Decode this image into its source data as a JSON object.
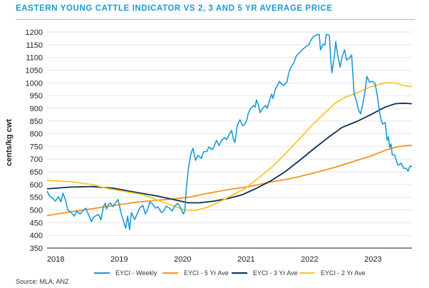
{
  "title": "EASTERN YOUNG CATTLE INDICATOR VS 2, 3 AND 5 YR AVERAGE PRICE",
  "source": "Source: MLA, ANZ",
  "chart_data": {
    "type": "line",
    "title": "EASTERN YOUNG CATTLE INDICATOR VS 2, 3 AND 5 YR AVERAGE PRICE",
    "xlabel": "",
    "ylabel": "cents/kg cwt",
    "xlim": [
      2018.0,
      2023.75
    ],
    "ylim": [
      350,
      1200
    ],
    "x_ticks": [
      "2018",
      "2019",
      "2020",
      "2021",
      "2022",
      "2023"
    ],
    "x_tick_values": [
      2018,
      2019,
      2020,
      2021,
      2022,
      2023
    ],
    "y_ticks": [
      350,
      400,
      450,
      500,
      550,
      600,
      650,
      700,
      750,
      800,
      850,
      900,
      950,
      1000,
      1050,
      1100,
      1150,
      1200
    ],
    "grid": true,
    "legend_position": "bottom",
    "series": [
      {
        "name": "EYCI - Weekly",
        "color": "#1a9ad6",
        "points": [
          [
            2018.0,
            574
          ],
          [
            2018.04,
            555
          ],
          [
            2018.09,
            546
          ],
          [
            2018.13,
            535
          ],
          [
            2018.18,
            552
          ],
          [
            2018.22,
            532
          ],
          [
            2018.25,
            566
          ],
          [
            2018.29,
            541
          ],
          [
            2018.33,
            499
          ],
          [
            2018.38,
            490
          ],
          [
            2018.43,
            476
          ],
          [
            2018.47,
            496
          ],
          [
            2018.52,
            484
          ],
          [
            2018.56,
            496
          ],
          [
            2018.61,
            507
          ],
          [
            2018.65,
            484
          ],
          [
            2018.7,
            454
          ],
          [
            2018.73,
            470
          ],
          [
            2018.76,
            476
          ],
          [
            2018.81,
            482
          ],
          [
            2018.85,
            462
          ],
          [
            2018.89,
            513
          ],
          [
            2018.92,
            527
          ],
          [
            2018.94,
            504
          ],
          [
            2018.97,
            522
          ],
          [
            2019.0,
            527
          ],
          [
            2019.04,
            513
          ],
          [
            2019.06,
            522
          ],
          [
            2019.12,
            541
          ],
          [
            2019.17,
            484
          ],
          [
            2019.24,
            428
          ],
          [
            2019.27,
            476
          ],
          [
            2019.3,
            423
          ],
          [
            2019.33,
            490
          ],
          [
            2019.38,
            462
          ],
          [
            2019.42,
            484
          ],
          [
            2019.46,
            507
          ],
          [
            2019.51,
            518
          ],
          [
            2019.55,
            484
          ],
          [
            2019.58,
            499
          ],
          [
            2019.62,
            532
          ],
          [
            2019.66,
            524
          ],
          [
            2019.71,
            507
          ],
          [
            2019.75,
            513
          ],
          [
            2019.8,
            490
          ],
          [
            2019.84,
            496
          ],
          [
            2019.88,
            515
          ],
          [
            2019.93,
            507
          ],
          [
            2019.97,
            496
          ],
          [
            2020.01,
            513
          ],
          [
            2020.06,
            527
          ],
          [
            2020.1,
            510
          ],
          [
            2020.15,
            484
          ],
          [
            2020.17,
            496
          ],
          [
            2020.2,
            597
          ],
          [
            2020.23,
            667
          ],
          [
            2020.27,
            723
          ],
          [
            2020.3,
            743
          ],
          [
            2020.34,
            695
          ],
          [
            2020.38,
            715
          ],
          [
            2020.43,
            703
          ],
          [
            2020.47,
            729
          ],
          [
            2020.52,
            731
          ],
          [
            2020.55,
            748
          ],
          [
            2020.6,
            737
          ],
          [
            2020.63,
            748
          ],
          [
            2020.67,
            774
          ],
          [
            2020.71,
            754
          ],
          [
            2020.75,
            774
          ],
          [
            2020.8,
            785
          ],
          [
            2020.83,
            776
          ],
          [
            2020.88,
            802
          ],
          [
            2020.91,
            813
          ],
          [
            2020.93,
            785
          ],
          [
            2020.96,
            765
          ],
          [
            2021.0,
            835
          ],
          [
            2021.04,
            855
          ],
          [
            2021.08,
            832
          ],
          [
            2021.11,
            835
          ],
          [
            2021.15,
            855
          ],
          [
            2021.17,
            880
          ],
          [
            2021.21,
            900
          ],
          [
            2021.26,
            911
          ],
          [
            2021.28,
            905
          ],
          [
            2021.3,
            933
          ],
          [
            2021.33,
            914
          ],
          [
            2021.36,
            883
          ],
          [
            2021.39,
            897
          ],
          [
            2021.44,
            911
          ],
          [
            2021.47,
            900
          ],
          [
            2021.51,
            933
          ],
          [
            2021.54,
            956
          ],
          [
            2021.56,
            939
          ],
          [
            2021.6,
            976
          ],
          [
            2021.63,
            990
          ],
          [
            2021.66,
            1006
          ],
          [
            2021.7,
            995
          ],
          [
            2021.73,
            990
          ],
          [
            2021.78,
            1004
          ],
          [
            2021.81,
            1040
          ],
          [
            2021.84,
            1060
          ],
          [
            2021.89,
            1079
          ],
          [
            2021.93,
            1107
          ],
          [
            2021.98,
            1119
          ],
          [
            2022.02,
            1130
          ],
          [
            2022.07,
            1141
          ],
          [
            2022.09,
            1144
          ],
          [
            2022.13,
            1152
          ],
          [
            2022.16,
            1169
          ],
          [
            2022.2,
            1183
          ],
          [
            2022.24,
            1187
          ],
          [
            2022.26,
            1190
          ],
          [
            2022.29,
            1190
          ],
          [
            2022.31,
            1130
          ],
          [
            2022.35,
            1152
          ],
          [
            2022.38,
            1150
          ],
          [
            2022.4,
            1190
          ],
          [
            2022.43,
            1190
          ],
          [
            2022.45,
            1185
          ],
          [
            2022.47,
            1096
          ],
          [
            2022.49,
            1040
          ],
          [
            2022.53,
            1110
          ],
          [
            2022.55,
            1163
          ],
          [
            2022.58,
            1110
          ],
          [
            2022.62,
            1062
          ],
          [
            2022.65,
            1104
          ],
          [
            2022.69,
            1130
          ],
          [
            2022.72,
            1090
          ],
          [
            2022.76,
            1096
          ],
          [
            2022.8,
            1110
          ],
          [
            2022.84,
            956
          ],
          [
            2022.88,
            928
          ],
          [
            2022.9,
            900
          ],
          [
            2022.94,
            878
          ],
          [
            2022.97,
            908
          ],
          [
            2023.01,
            964
          ],
          [
            2023.04,
            1026
          ],
          [
            2023.08,
            1004
          ],
          [
            2023.13,
            1006
          ],
          [
            2023.17,
            997
          ],
          [
            2023.21,
            942
          ],
          [
            2023.24,
            886
          ],
          [
            2023.26,
            858
          ],
          [
            2023.29,
            838
          ],
          [
            2023.33,
            844
          ],
          [
            2023.36,
            774
          ],
          [
            2023.38,
            788
          ],
          [
            2023.4,
            746
          ],
          [
            2023.42,
            760
          ],
          [
            2023.44,
            718
          ],
          [
            2023.48,
            715
          ],
          [
            2023.51,
            690
          ],
          [
            2023.53,
            676
          ],
          [
            2023.58,
            684
          ],
          [
            2023.62,
            664
          ],
          [
            2023.66,
            664
          ],
          [
            2023.69,
            653
          ],
          [
            2023.72,
            673
          ],
          [
            2023.75,
            670
          ]
        ]
      },
      {
        "name": "EYCI - 5 Yr Ave",
        "color": "#f7941d",
        "points": [
          [
            2018.0,
            478
          ],
          [
            2018.38,
            493
          ],
          [
            2018.72,
            505
          ],
          [
            2019.06,
            518
          ],
          [
            2019.39,
            530
          ],
          [
            2019.73,
            538
          ],
          [
            2020.06,
            545
          ],
          [
            2020.23,
            550
          ],
          [
            2020.52,
            565
          ],
          [
            2020.85,
            580
          ],
          [
            2021.19,
            592
          ],
          [
            2021.53,
            610
          ],
          [
            2021.87,
            625
          ],
          [
            2022.2,
            645
          ],
          [
            2022.54,
            668
          ],
          [
            2022.88,
            695
          ],
          [
            2023.1,
            712
          ],
          [
            2023.33,
            735
          ],
          [
            2023.55,
            750
          ],
          [
            2023.75,
            755
          ]
        ]
      },
      {
        "name": "EYCI - 3 Yr Ave",
        "color": "#0b2f52",
        "points": [
          [
            2018.0,
            583
          ],
          [
            2018.38,
            590
          ],
          [
            2018.72,
            592
          ],
          [
            2019.06,
            585
          ],
          [
            2019.39,
            570
          ],
          [
            2019.73,
            555
          ],
          [
            2020.06,
            537
          ],
          [
            2020.23,
            528
          ],
          [
            2020.4,
            528
          ],
          [
            2020.63,
            535
          ],
          [
            2020.85,
            545
          ],
          [
            2021.08,
            560
          ],
          [
            2021.3,
            585
          ],
          [
            2021.53,
            615
          ],
          [
            2021.75,
            650
          ],
          [
            2021.98,
            695
          ],
          [
            2022.2,
            740
          ],
          [
            2022.43,
            785
          ],
          [
            2022.65,
            825
          ],
          [
            2022.88,
            848
          ],
          [
            2023.1,
            875
          ],
          [
            2023.33,
            905
          ],
          [
            2023.49,
            918
          ],
          [
            2023.61,
            920
          ],
          [
            2023.75,
            918
          ]
        ]
      },
      {
        "name": "EYCI - 2 Yr Ave",
        "color": "#fcc52d",
        "points": [
          [
            2018.0,
            617
          ],
          [
            2018.38,
            611
          ],
          [
            2018.72,
            600
          ],
          [
            2018.94,
            585
          ],
          [
            2019.17,
            575
          ],
          [
            2019.51,
            560
          ],
          [
            2019.84,
            530
          ],
          [
            2020.17,
            500
          ],
          [
            2020.34,
            498
          ],
          [
            2020.52,
            510
          ],
          [
            2020.74,
            535
          ],
          [
            2020.97,
            565
          ],
          [
            2021.13,
            585
          ],
          [
            2021.3,
            620
          ],
          [
            2021.53,
            665
          ],
          [
            2021.75,
            720
          ],
          [
            2021.98,
            780
          ],
          [
            2022.2,
            840
          ],
          [
            2022.37,
            880
          ],
          [
            2022.54,
            920
          ],
          [
            2022.71,
            945
          ],
          [
            2022.88,
            960
          ],
          [
            2023.1,
            985
          ],
          [
            2023.33,
            1000
          ],
          [
            2023.49,
            1000
          ],
          [
            2023.61,
            990
          ],
          [
            2023.75,
            985
          ]
        ]
      }
    ]
  }
}
